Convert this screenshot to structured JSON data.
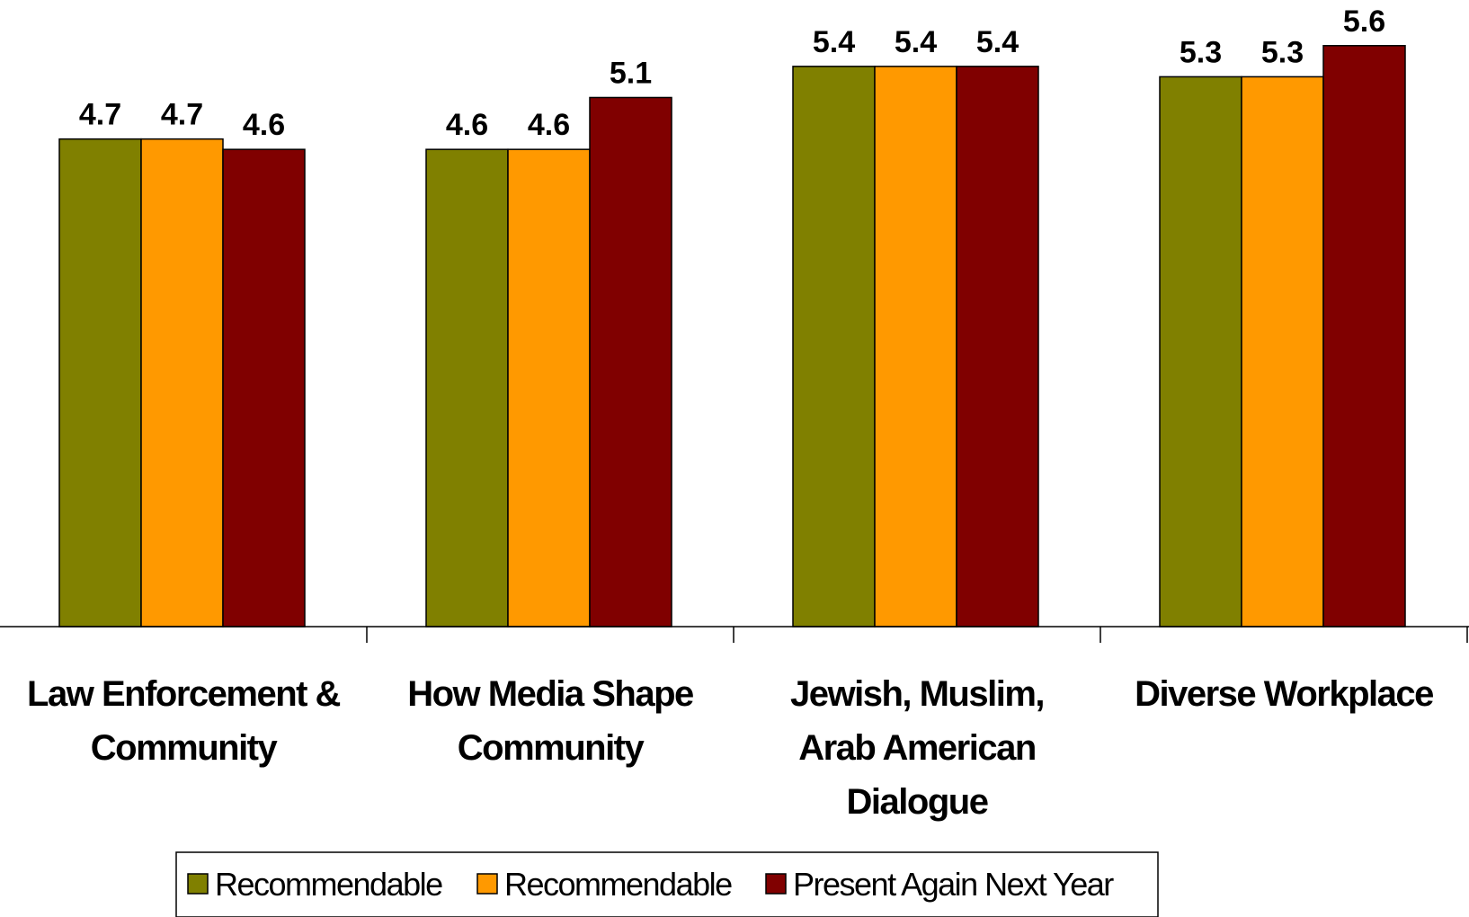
{
  "chart_data": {
    "type": "bar",
    "categories": [
      [
        "Law Enforcement &",
        "Community"
      ],
      [
        "How Media Shape",
        "Community"
      ],
      [
        "Jewish, Muslim,",
        "Arab American",
        "Dialogue"
      ],
      [
        "Diverse Workplace"
      ]
    ],
    "series": [
      {
        "name": "Recommendable",
        "color": "#808000",
        "values": [
          4.7,
          4.6,
          5.4,
          5.3
        ]
      },
      {
        "name": "Recommendable",
        "color": "#FF9900",
        "values": [
          4.7,
          4.6,
          5.4,
          5.3
        ]
      },
      {
        "name": "Present Again Next Year",
        "color": "#800000",
        "values": [
          4.6,
          5.1,
          5.4,
          5.6
        ]
      }
    ],
    "value_labels": [
      [
        "4.7",
        "4.6",
        "5.4",
        "5.3"
      ],
      [
        "4.7",
        "4.6",
        "5.4",
        "5.3"
      ],
      [
        "4.6",
        "5.1",
        "5.4",
        "5.6"
      ]
    ],
    "ylim": [
      0,
      6.04
    ],
    "grid": false,
    "legend_position": "bottom-center",
    "title": "",
    "xlabel": "",
    "ylabel": ""
  }
}
